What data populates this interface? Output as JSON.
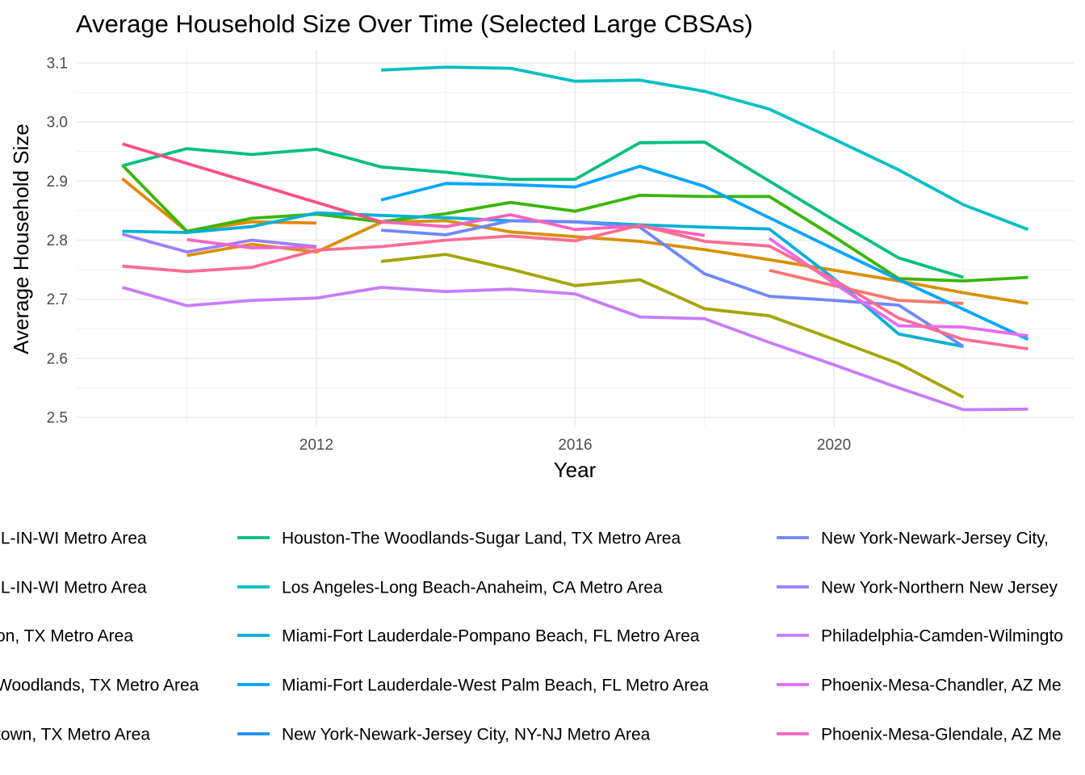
{
  "chart_data": {
    "type": "line",
    "title": "Average Household Size Over Time (Selected Large CBSAs)",
    "xlabel": "Year",
    "ylabel": "Average Household Size",
    "xlim": [
      2008.6,
      2023.4
    ],
    "ylim": [
      2.485,
      3.125
    ],
    "x_ticks": [
      2012,
      2016,
      2020
    ],
    "y_ticks": [
      2.5,
      2.6,
      2.7,
      2.8,
      2.9,
      3.0,
      3.1
    ],
    "grid": true,
    "legend_position": "bottom",
    "series": [
      {
        "name": "IL-IN-WI Metro Area",
        "color": "#F8766D",
        "legend_col": 0,
        "legend_row": 0,
        "x": [
          2019,
          2020,
          2021,
          2022
        ],
        "y": [
          2.749,
          2.723,
          2.698,
          2.693
        ]
      },
      {
        "name": "IL-IN-WI Metro Area",
        "color": "#E58700",
        "legend_col": 0,
        "legend_row": 1,
        "x": [
          2009,
          2010,
          2011,
          2012
        ],
        "y": [
          2.904,
          2.815,
          2.831,
          2.829
        ]
      },
      {
        "name": "on, TX Metro Area",
        "color": "#D89000",
        "legend_col": 0,
        "legend_row": 2,
        "x": [
          2010,
          2011,
          2012,
          2013,
          2014,
          2015,
          2016,
          2017,
          2018,
          2019,
          2020,
          2021,
          2022,
          2023
        ],
        "y": [
          2.774,
          2.793,
          2.78,
          2.83,
          2.833,
          2.814,
          2.806,
          2.798,
          2.784,
          2.767,
          2.749,
          2.731,
          2.711,
          2.693
        ]
      },
      {
        "name": "Woodlands, TX Metro Area",
        "color": "#A3A500",
        "legend_col": 0,
        "legend_row": 3,
        "x": [
          2013,
          2014,
          2015,
          2016,
          2017,
          2018,
          2019,
          2020,
          2021,
          2022
        ],
        "y": [
          2.764,
          2.776,
          2.751,
          2.723,
          2.733,
          2.684,
          2.672,
          2.632,
          2.591,
          2.534
        ]
      },
      {
        "name": "town, TX Metro Area",
        "color": "#39B600",
        "legend_col": 0,
        "legend_row": 4,
        "x": [
          2009,
          2010,
          2011,
          2012,
          2013,
          2014,
          2015,
          2016,
          2017,
          2018,
          2019,
          2020,
          2021,
          2022,
          2023
        ],
        "y": [
          2.927,
          2.815,
          2.837,
          2.844,
          2.831,
          2.845,
          2.864,
          2.849,
          2.876,
          2.874,
          2.874,
          2.806,
          2.735,
          2.731,
          2.737
        ]
      },
      {
        "name": "Houston-The Woodlands-Sugar Land, TX Metro Area",
        "color": "#00BF7D",
        "legend_col": 1,
        "legend_row": 0,
        "x": [
          2009,
          2010,
          2011,
          2012,
          2013,
          2014,
          2015,
          2016,
          2017,
          2018,
          2019,
          2020,
          2021,
          2022
        ],
        "y": [
          2.926,
          2.955,
          2.945,
          2.954,
          2.924,
          2.915,
          2.903,
          2.903,
          2.965,
          2.966,
          2.9,
          2.834,
          2.77,
          2.737
        ]
      },
      {
        "name": "Los Angeles-Long Beach-Anaheim, CA Metro Area",
        "color": "#00BFC4",
        "legend_col": 1,
        "legend_row": 1,
        "x": [
          2013,
          2014,
          2015,
          2016,
          2017,
          2018,
          2019,
          2020,
          2021,
          2022,
          2023
        ],
        "y": [
          3.088,
          3.093,
          3.091,
          3.069,
          3.071,
          3.052,
          3.022,
          2.971,
          2.919,
          2.86,
          2.818
        ]
      },
      {
        "name": "Miami-Fort Lauderdale-Pompano Beach, FL Metro Area",
        "color": "#00B0D8",
        "legend_col": 1,
        "legend_row": 2,
        "x": [
          2009,
          2010,
          2011,
          2012,
          2013,
          2014,
          2015,
          2016,
          2017,
          2018,
          2019,
          2020,
          2021,
          2022
        ],
        "y": [
          2.815,
          2.813,
          2.823,
          2.846,
          2.842,
          2.838,
          2.833,
          2.831,
          2.826,
          2.822,
          2.819,
          2.735,
          2.641,
          2.62
        ]
      },
      {
        "name": "Miami-Fort Lauderdale-West Palm Beach, FL Metro Area",
        "color": "#00A5FF",
        "legend_col": 1,
        "legend_row": 3,
        "x": [
          2013,
          2014,
          2015,
          2016,
          2017,
          2018,
          2019,
          2020,
          2021,
          2022,
          2023
        ],
        "y": [
          2.868,
          2.896,
          2.894,
          2.89,
          2.925,
          2.891,
          2.838,
          2.785,
          2.733,
          2.683,
          2.632
        ]
      },
      {
        "name": "New York-Newark-Jersey City, NY-NJ Metro Area",
        "color": "#1E90FF",
        "legend_col": 1,
        "legend_row": 4,
        "x": [],
        "y": []
      },
      {
        "name": "New York-Newark-Jersey City,",
        "color": "#6F87FF",
        "legend_col": 2,
        "legend_row": 0,
        "x": [
          2013,
          2014,
          2015,
          2016,
          2017,
          2018,
          2019,
          2020,
          2021,
          2022
        ],
        "y": [
          2.817,
          2.809,
          2.833,
          2.831,
          2.822,
          2.743,
          2.705,
          2.698,
          2.69,
          2.62
        ]
      },
      {
        "name": "New York-Northern New Jersey",
        "color": "#9D7EFF",
        "legend_col": 2,
        "legend_row": 1,
        "x": [
          2009,
          2010,
          2011,
          2012
        ],
        "y": [
          2.81,
          2.78,
          2.8,
          2.789
        ]
      },
      {
        "name": "Philadelphia-Camden-Wilmingto",
        "color": "#C77CFF",
        "legend_col": 2,
        "legend_row": 2,
        "x": [
          2009,
          2010,
          2011,
          2012,
          2013,
          2014,
          2015,
          2016,
          2017,
          2018,
          2019,
          2020,
          2021,
          2022,
          2023
        ],
        "y": [
          2.72,
          2.689,
          2.698,
          2.702,
          2.72,
          2.713,
          2.717,
          2.709,
          2.67,
          2.667,
          2.627,
          2.589,
          2.55,
          2.513,
          2.514
        ]
      },
      {
        "name": "Phoenix-Mesa-Chandler, AZ Me",
        "color": "#E76BF3",
        "legend_col": 2,
        "legend_row": 3,
        "x": [
          2019,
          2020,
          2021,
          2022,
          2023
        ],
        "y": [
          2.803,
          2.727,
          2.655,
          2.653,
          2.638
        ]
      },
      {
        "name": "Phoenix-Mesa-Glendale, AZ Me",
        "color": "#F066C8",
        "legend_col": 2,
        "legend_row": 4,
        "x": [
          2010,
          2011,
          2012
        ],
        "y": [
          2.801,
          2.787,
          2.788
        ]
      },
      {
        "name": "",
        "color": "#FF62BC",
        "legend_col": null,
        "legend_row": null,
        "x": [
          2013,
          2014,
          2015,
          2016,
          2017,
          2018
        ],
        "y": [
          2.831,
          2.823,
          2.843,
          2.818,
          2.824,
          2.808
        ]
      },
      {
        "name": "",
        "color": "#FF6C91",
        "legend_col": null,
        "legend_row": null,
        "x": [
          2009,
          2010,
          2011,
          2012,
          2013,
          2014,
          2015,
          2016,
          2017,
          2018,
          2019,
          2020,
          2021,
          2022,
          2023
        ],
        "y": [
          2.756,
          2.747,
          2.754,
          2.783,
          2.789,
          2.8,
          2.807,
          2.799,
          2.825,
          2.798,
          2.79,
          2.733,
          2.668,
          2.632,
          2.616
        ]
      },
      {
        "name": "",
        "color": "#FC4F8A",
        "legend_col": null,
        "legend_row": null,
        "x": [
          2009,
          2010,
          2011,
          2012,
          2013
        ],
        "y": [
          2.963,
          2.93,
          2.897,
          2.864,
          2.831
        ]
      }
    ]
  }
}
